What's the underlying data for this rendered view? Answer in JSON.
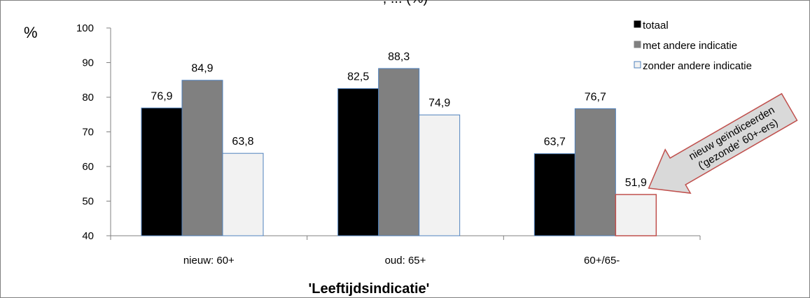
{
  "chart_data": {
    "type": "bar",
    "title": ", ... (%)",
    "ylabel": "%",
    "xlabel": "'Leeftijdsindicatie'",
    "ylim": [
      40,
      100
    ],
    "yticks": [
      40,
      50,
      60,
      70,
      80,
      90,
      100
    ],
    "grid": false,
    "legend_position": "top-right",
    "categories": [
      "nieuw: 60+",
      "oud: 65+",
      "60+/65-"
    ],
    "series": [
      {
        "name": "totaal",
        "values": [
          76.9,
          82.5,
          63.7
        ],
        "labels": [
          "76,9",
          "82,5",
          "63,7"
        ],
        "color": "#000000"
      },
      {
        "name": "met andere indicatie",
        "values": [
          84.9,
          88.3,
          76.7
        ],
        "labels": [
          "84,9",
          "88,3",
          "76,7"
        ],
        "color": "#808080"
      },
      {
        "name": "zonder andere indicatie",
        "values": [
          63.8,
          74.9,
          51.9
        ],
        "labels": [
          "63,8",
          "74,9",
          "51,9"
        ],
        "color": "#f2f2f2"
      }
    ],
    "annotation": {
      "lines": [
        "nieuw geïndiceerden",
        "('gezonde' 60+-ers)"
      ],
      "target_category": "60+/65-",
      "target_series": "zonder andere indicatie",
      "highlight_color": "#c0504d",
      "arrow_fill": "#d9d9d9"
    }
  }
}
